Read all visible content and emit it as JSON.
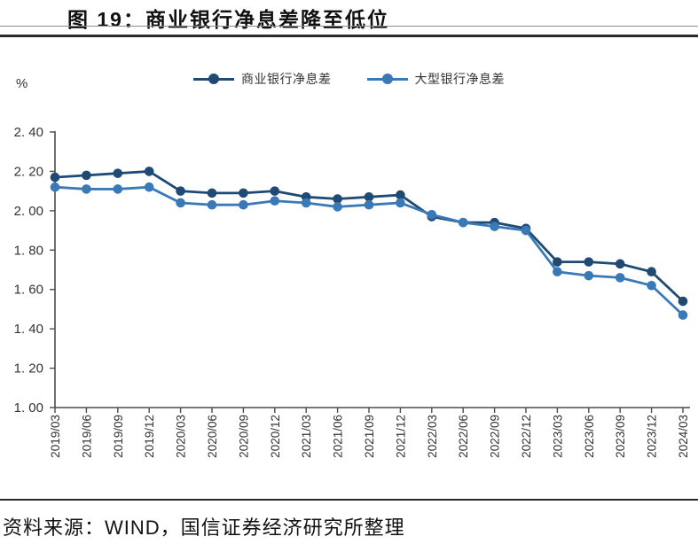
{
  "header": {
    "title": "图 19：商业银行净息差降至低位"
  },
  "footer": {
    "source_label": "资料来源：WIND，国信证券经济研究所整理"
  },
  "chart_data": {
    "type": "line",
    "title": "图 19：商业银行净息差降至低位",
    "unit_label": "%",
    "xlabel": "",
    "ylabel": "%",
    "ylim": [
      1.0,
      2.4
    ],
    "ytick_step": 0.2,
    "ytick_labels": [
      "2. 40",
      "2. 20",
      "2. 00",
      "1. 80",
      "1. 60",
      "1. 40",
      "1. 20",
      "1. 00"
    ],
    "grid": false,
    "legend_position": "top-center",
    "x": [
      "2019/03",
      "2019/06",
      "2019/09",
      "2019/12",
      "2020/03",
      "2020/06",
      "2020/09",
      "2020/12",
      "2021/03",
      "2021/06",
      "2021/09",
      "2021/12",
      "2022/03",
      "2022/06",
      "2022/09",
      "2022/12",
      "2023/03",
      "2023/06",
      "2023/09",
      "2023/12",
      "2024/03"
    ],
    "series": [
      {
        "name": "商业银行净息差",
        "color": "#1F4A73",
        "values": [
          2.17,
          2.18,
          2.19,
          2.2,
          2.1,
          2.09,
          2.09,
          2.1,
          2.07,
          2.06,
          2.07,
          2.08,
          1.97,
          1.94,
          1.94,
          1.91,
          1.74,
          1.74,
          1.73,
          1.69,
          1.54
        ]
      },
      {
        "name": "大型银行净息差",
        "color": "#3A79B7",
        "values": [
          2.12,
          2.11,
          2.11,
          2.12,
          2.04,
          2.03,
          2.03,
          2.05,
          2.04,
          2.02,
          2.03,
          2.04,
          1.98,
          1.94,
          1.92,
          1.9,
          1.69,
          1.67,
          1.66,
          1.62,
          1.47
        ]
      }
    ]
  }
}
